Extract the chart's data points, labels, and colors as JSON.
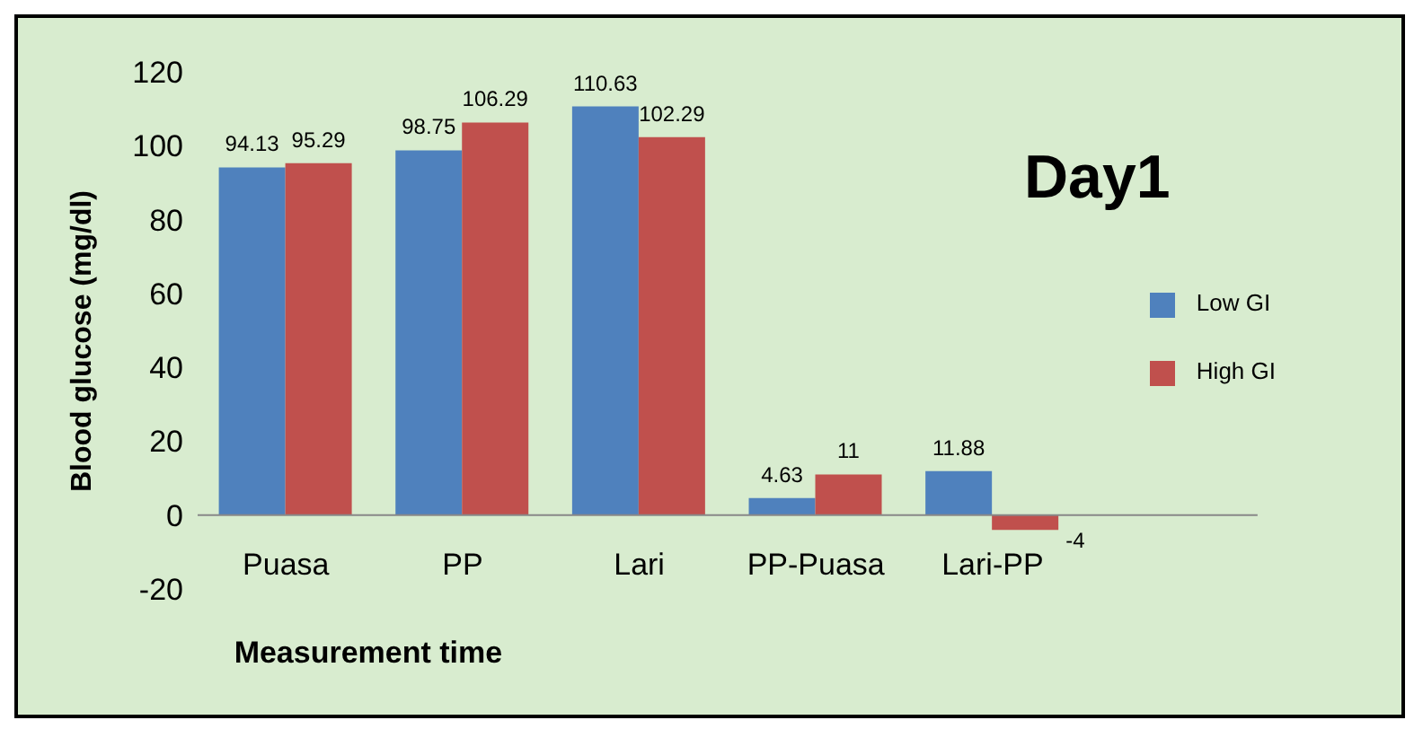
{
  "chart_data": {
    "type": "bar",
    "title": "Day1",
    "xlabel": "Measurement time",
    "ylabel": "Blood glucose (mg/dl)",
    "categories": [
      "Puasa",
      "PP",
      "Lari",
      "PP-Puasa",
      "Lari-PP",
      null
    ],
    "series": [
      {
        "name": "Low GI",
        "color": "#4f81bd",
        "values": [
          94.13,
          98.75,
          110.63,
          4.63,
          11.88,
          null
        ]
      },
      {
        "name": "High GI",
        "color": "#c0504d",
        "values": [
          95.29,
          106.29,
          102.29,
          11,
          -4,
          null
        ]
      }
    ],
    "ylim": [
      -20,
      120
    ],
    "yticks": [
      -20,
      0,
      20,
      40,
      60,
      80,
      100,
      120
    ],
    "data_labels": true,
    "legend": "right",
    "grid": false
  }
}
